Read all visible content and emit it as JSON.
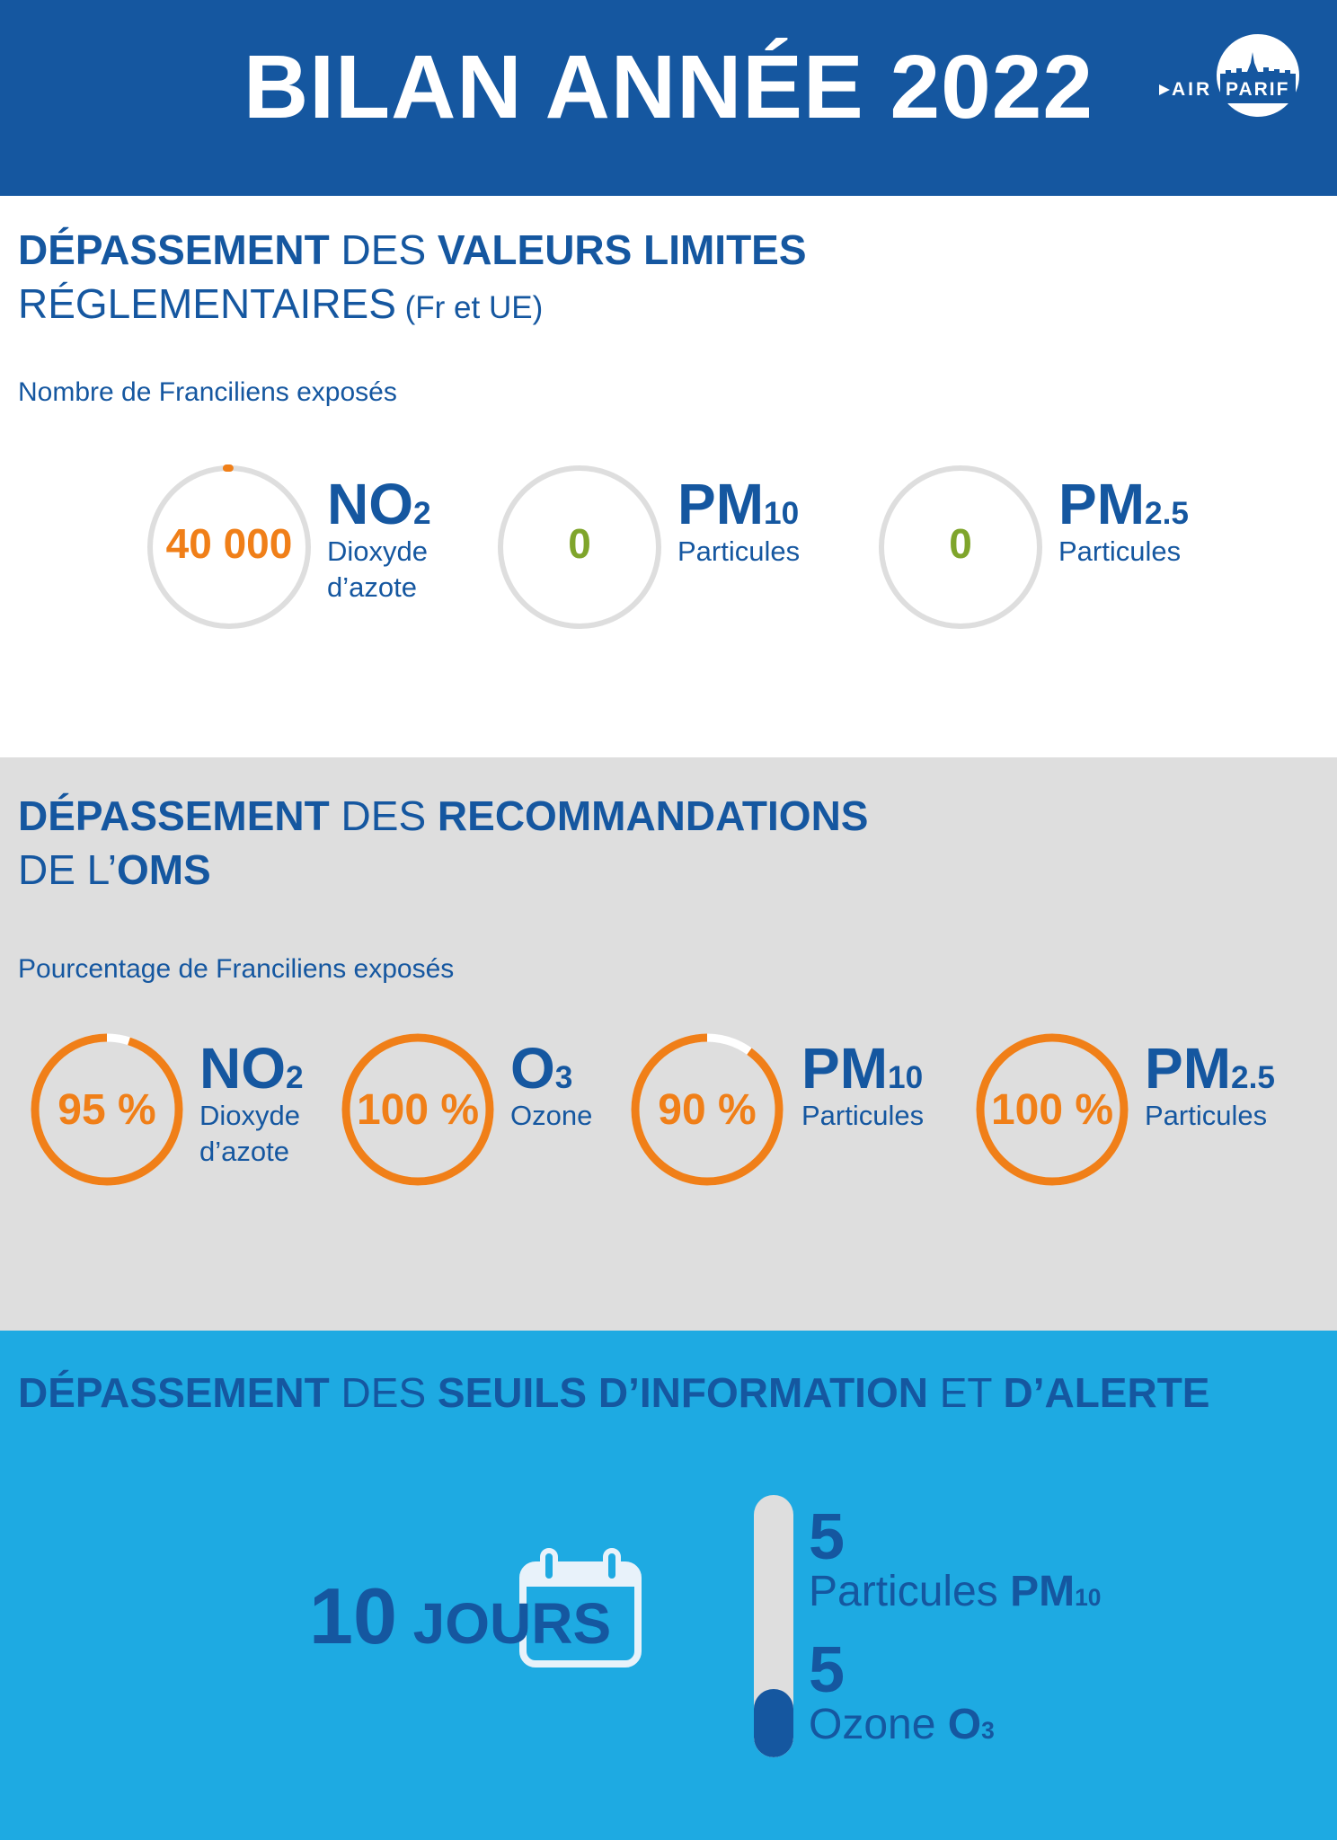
{
  "header": {
    "title": "BILAN ANNÉE 2022",
    "logo_left": "AIR",
    "logo_right": "PARIF"
  },
  "colors": {
    "brand_blue": "#1557a0",
    "orange": "#f07f18",
    "green": "#7fa52b",
    "grey": "#dedede",
    "light_blue": "#1eaae2"
  },
  "section1": {
    "title_bold1": "DÉPASSEMENT",
    "title_light1": " DES ",
    "title_bold2": "VALEURS LIMITES",
    "title_line2": "RÉGLEMENTAIRES",
    "title_small": " (Fr et UE)",
    "subtitle": "Nombre de Franciliens exposés",
    "items": [
      {
        "value": "40 000",
        "pollutant": "NO",
        "pollutant_sub": "2",
        "desc1": "Dioxyde",
        "desc2": "d’azote"
      },
      {
        "value": "0",
        "pollutant": "PM",
        "pollutant_sub": "10",
        "desc1": "Particules",
        "desc2": ""
      },
      {
        "value": "0",
        "pollutant": "PM",
        "pollutant_sub": "2.5",
        "desc1": "Particules",
        "desc2": ""
      }
    ]
  },
  "section2": {
    "title_bold1": "DÉPASSEMENT",
    "title_light1": " DES ",
    "title_bold2": "RECOMMANDATIONS",
    "title_light2": "DE L’",
    "title_bold3": "OMS",
    "subtitle": "Pourcentage de Franciliens exposés",
    "items": [
      {
        "value": "95 %",
        "percent": 95,
        "pollutant": "NO",
        "pollutant_sub": "2",
        "desc1": "Dioxyde",
        "desc2": "d’azote"
      },
      {
        "value": "100 %",
        "percent": 100,
        "pollutant": "O",
        "pollutant_sub": "3",
        "desc1": "Ozone",
        "desc2": ""
      },
      {
        "value": "90 %",
        "percent": 90,
        "pollutant": "PM",
        "pollutant_sub": "10",
        "desc1": "Particules",
        "desc2": ""
      },
      {
        "value": "100 %",
        "percent": 100,
        "pollutant": "PM",
        "pollutant_sub": "2.5",
        "desc1": "Particules",
        "desc2": ""
      }
    ]
  },
  "section3": {
    "title_bold1": "DÉPASSEMENT",
    "title_light1": " DES ",
    "title_bold2": "SEUILS D’INFORMATION",
    "title_light2": " ET ",
    "title_bold3": "D’ALERTE",
    "days_number": "10",
    "days_unit": " JOURS",
    "stats": [
      {
        "value": "5",
        "label": "Particules ",
        "pollutant": "PM",
        "pollutant_sub": "10"
      },
      {
        "value": "5",
        "label": "Ozone ",
        "pollutant": "O",
        "pollutant_sub": "3"
      }
    ]
  }
}
